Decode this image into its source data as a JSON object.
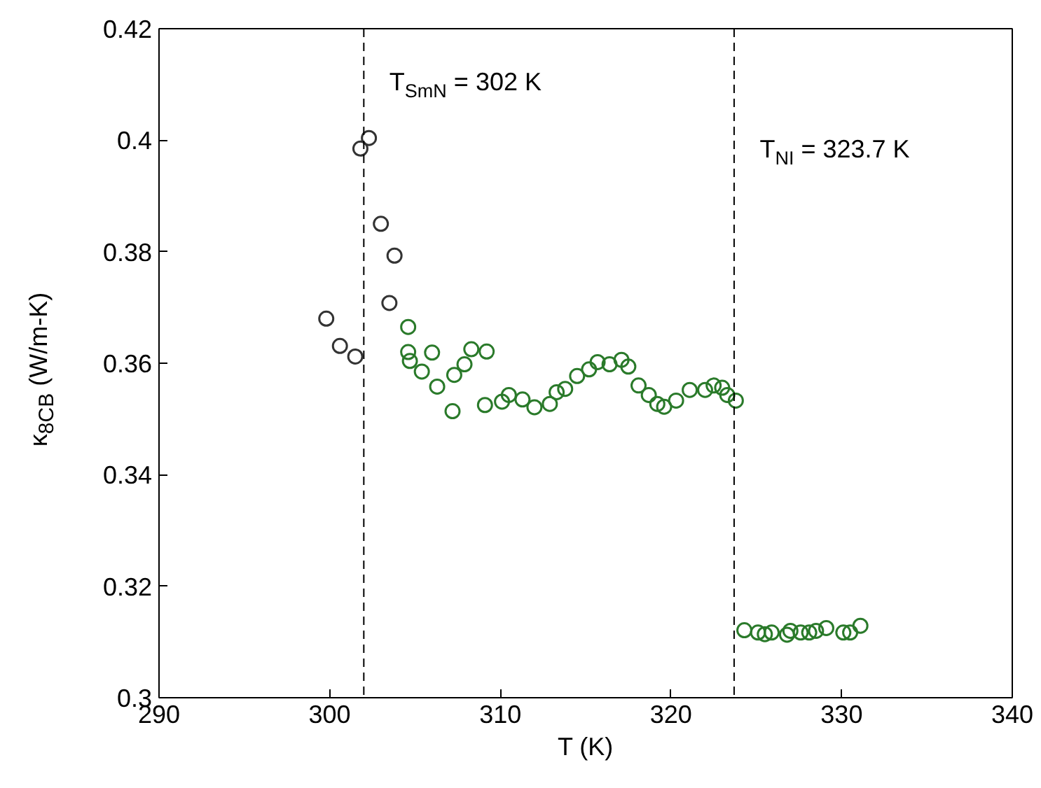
{
  "chart_data": {
    "type": "scatter",
    "xlabel": "T (K)",
    "ylabel": "κ$_{8CB}$ (W/m-K)",
    "marker": "circle",
    "grid": false,
    "xlim": [
      290,
      340
    ],
    "xticks": [
      290,
      300,
      310,
      320,
      330,
      340
    ],
    "ylim": [
      0.3,
      0.42
    ],
    "yticks": [
      0.3,
      0.32,
      0.34,
      0.36,
      0.38,
      0.4,
      0.42
    ],
    "series": [
      {
        "color": "#333333",
        "x": [
          299.8,
          300.6,
          301.5,
          301.8,
          302.3,
          303.0,
          303.8,
          303.5
        ],
        "values": [
          0.368,
          0.3631,
          0.3612,
          0.3985,
          0.4004,
          0.385,
          0.3793,
          0.3708
        ]
      },
      {
        "color": "#2a7a2a",
        "x": [
          304.6,
          304.6,
          304.7,
          305.4,
          306.0,
          306.3,
          307.2,
          307.3,
          307.9,
          308.3,
          309.2,
          309.1,
          310.1,
          310.5,
          311.3,
          312.0,
          312.9,
          313.3,
          313.8,
          314.5,
          315.2,
          315.7,
          316.4,
          317.1,
          317.5,
          318.1,
          318.7,
          319.2,
          319.6,
          320.3,
          321.1,
          322.0,
          322.5,
          323.0,
          323.3,
          323.8,
          324.3,
          325.1,
          325.5,
          325.9,
          326.8,
          327.0,
          327.6,
          328.1,
          328.5,
          329.1,
          330.1,
          330.5,
          331.1
        ],
        "values": [
          0.3665,
          0.362,
          0.3604,
          0.3585,
          0.3619,
          0.3558,
          0.3514,
          0.3579,
          0.3598,
          0.3625,
          0.3621,
          0.3525,
          0.3531,
          0.3543,
          0.3535,
          0.3521,
          0.3527,
          0.3548,
          0.3554,
          0.3577,
          0.3589,
          0.3602,
          0.3598,
          0.3606,
          0.3594,
          0.356,
          0.3543,
          0.3527,
          0.3522,
          0.3533,
          0.3552,
          0.3552,
          0.356,
          0.3556,
          0.3543,
          0.3533,
          0.3121,
          0.3117,
          0.3114,
          0.3117,
          0.3113,
          0.312,
          0.3117,
          0.3117,
          0.312,
          0.3125,
          0.3117,
          0.3117,
          0.3129
        ]
      }
    ],
    "ref_lines": [
      {
        "axis": "x",
        "value": 302,
        "label": "T$_{SmN}$ = 302 K",
        "line_style": "dashed",
        "color": "#000000"
      },
      {
        "axis": "x",
        "value": 323.7,
        "label": "T$_{NI}$ = 323.7 K",
        "line_style": "dashed",
        "color": "#000000"
      }
    ]
  }
}
